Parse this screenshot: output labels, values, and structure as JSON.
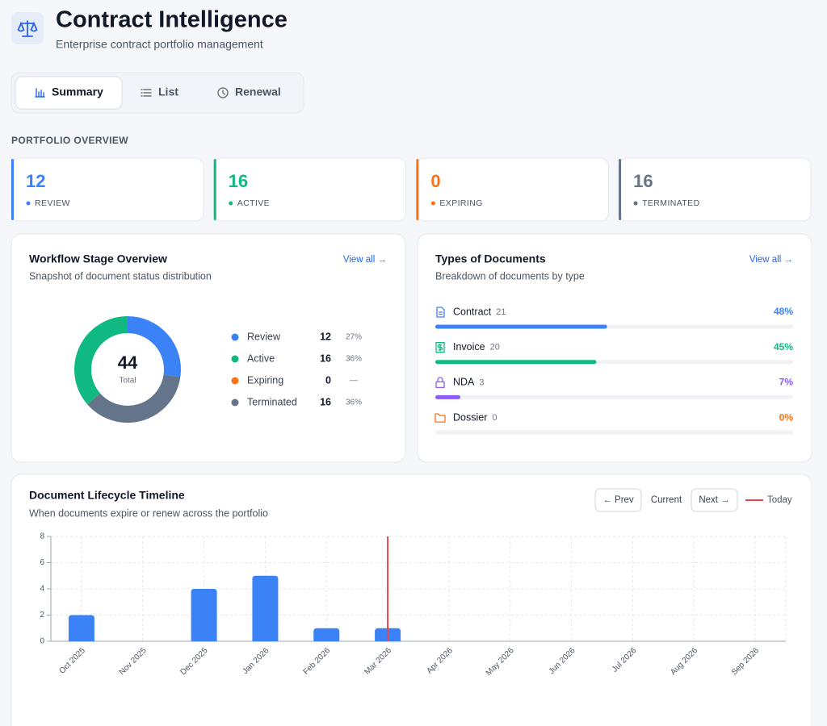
{
  "header": {
    "title": "Contract Intelligence",
    "subtitle": "Enterprise contract portfolio management"
  },
  "tabs": [
    {
      "label": "Summary",
      "active": true
    },
    {
      "label": "List",
      "active": false
    },
    {
      "label": "Renewal",
      "active": false
    }
  ],
  "overview": {
    "heading": "PORTFOLIO OVERVIEW",
    "cards": [
      {
        "value": 12,
        "label": "REVIEW",
        "color": "#3b82f6"
      },
      {
        "value": 16,
        "label": "ACTIVE",
        "color": "#10b981"
      },
      {
        "value": 0,
        "label": "EXPIRING",
        "color": "#f97316"
      },
      {
        "value": 16,
        "label": "TERMINATED",
        "color": "#64748b"
      }
    ]
  },
  "workflow": {
    "title": "Workflow Stage Overview",
    "subtitle": "Snapshot of document status distribution",
    "link": "View all →",
    "total": 44,
    "total_label": "Total",
    "stages": [
      {
        "name": "Review",
        "value": 12,
        "percent": "27%",
        "color": "#3b82f6"
      },
      {
        "name": "Active",
        "value": 16,
        "percent": "36%",
        "color": "#10b981"
      },
      {
        "name": "Expiring",
        "value": 0,
        "percent": "—",
        "color": "#f97316"
      },
      {
        "name": "Terminated",
        "value": 16,
        "percent": "36%",
        "color": "#64748b"
      }
    ]
  },
  "documents": {
    "title": "Types of Documents",
    "subtitle": "Breakdown of documents by type",
    "link": "View all →",
    "items": [
      {
        "name": "Contract",
        "count": 21,
        "percent": 48,
        "percent_label": "48%",
        "color": "#3b82f6"
      },
      {
        "name": "Invoice",
        "count": 20,
        "percent": 45,
        "percent_label": "45%",
        "color": "#10b981"
      },
      {
        "name": "NDA",
        "count": 3,
        "percent": 7,
        "percent_label": "7%",
        "color": "#8b5cf6"
      },
      {
        "name": "Dossier",
        "count": 0,
        "percent": 0,
        "percent_label": "0%",
        "color": "#f97316"
      }
    ]
  },
  "timeline": {
    "title": "Document Lifecycle Timeline",
    "subtitle": "When documents expire or renew across the portfolio",
    "controls": {
      "prev": "← Prev",
      "current": "Current",
      "next": "Next →",
      "today": "Today"
    },
    "chart_data": {
      "type": "bar",
      "categories": [
        "Oct 2025",
        "Nov 2025",
        "Dec 2025",
        "Jan 2026",
        "Feb 2026",
        "Mar 2026",
        "Apr 2026",
        "May 2026",
        "Jun 2026",
        "Jul 2026",
        "Aug 2026",
        "Sep 2026"
      ],
      "values": [
        2,
        0,
        4,
        5,
        1,
        1,
        0,
        0,
        0,
        0,
        0,
        0
      ],
      "color": "#3b82f6",
      "ylim": [
        0,
        8
      ],
      "yticks": [
        0,
        2,
        4,
        6,
        8
      ],
      "grid": true,
      "today_index": 5,
      "today_color": "#e5484d"
    }
  }
}
